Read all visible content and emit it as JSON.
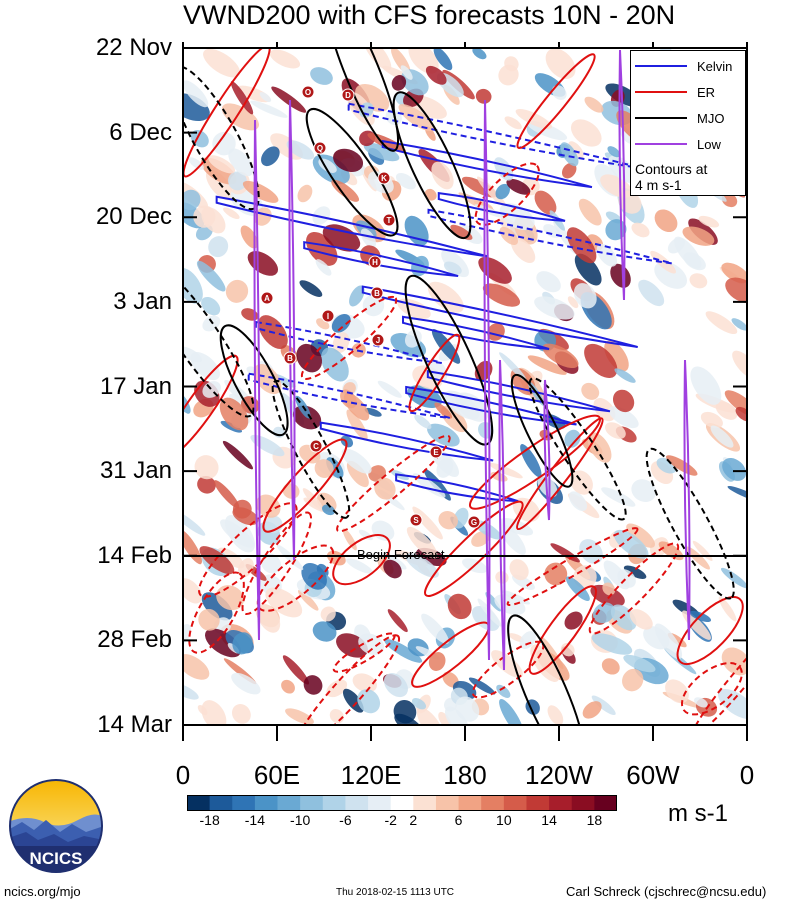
{
  "chart_data": {
    "type": "heatmap",
    "title": "VWND200 with CFS forecasts  10N - 20N",
    "x_tick_labels": [
      "0",
      "60E",
      "120E",
      "180",
      "120W",
      "60W",
      "0"
    ],
    "x_range_deg_east": [
      0,
      360
    ],
    "y_tick_labels": [
      "22 Nov",
      "6 Dec",
      "20 Dec",
      "3 Jan",
      "17 Jan",
      "31 Jan",
      "14 Feb",
      "28 Feb",
      "14 Mar"
    ],
    "y_range": [
      "2017-11-22",
      "2018-03-14"
    ],
    "y_axis_inverted": true,
    "forecast_start": "2018-02-14",
    "forecast_label": "Begin Forecast",
    "colorbar": {
      "unit": "m s-1",
      "tick_labels": [
        "-18",
        "-14",
        "-10",
        "-6",
        "-2",
        "2",
        "6",
        "10",
        "14",
        "18"
      ],
      "levels": [
        -20,
        -18,
        -16,
        -14,
        -12,
        -10,
        -8,
        -6,
        -4,
        -2,
        2,
        4,
        6,
        8,
        10,
        12,
        14,
        16,
        18,
        20
      ],
      "colors": [
        "#053061",
        "#1d5a9a",
        "#2f74b5",
        "#4b93c7",
        "#6aa9d3",
        "#8fc0de",
        "#b0d3e8",
        "#cfe2ef",
        "#e6eef5",
        "#ffffff",
        "#fbe1d3",
        "#f7c3a9",
        "#f1a384",
        "#e47f63",
        "#d55c4a",
        "#c13a35",
        "#a71e2b",
        "#8a0d22",
        "#67001f"
      ]
    },
    "legend": {
      "placement": "top-right",
      "entries": [
        {
          "name": "Kelvin",
          "color": "#1f1fe0"
        },
        {
          "name": "ER",
          "color": "#e01010"
        },
        {
          "name": "MJO",
          "color": "#000000"
        },
        {
          "name": "Low",
          "color": "#a040e0"
        }
      ],
      "note_line1": "Contours at",
      "note_line2": "4 m s-1"
    },
    "storm_labels": [
      "O",
      "D",
      "Q",
      "K",
      "T",
      "H",
      "B",
      "A",
      "I",
      "J",
      "B",
      "C",
      "E",
      "S",
      "G"
    ]
  },
  "footer": {
    "site": "ncics.org/mjo",
    "timestamp": "Thu 2018-02-15 1113 UTC",
    "author": "Carl Schreck (cjschrec@ncsu.edu)"
  },
  "logo": {
    "text": "NCICS"
  }
}
